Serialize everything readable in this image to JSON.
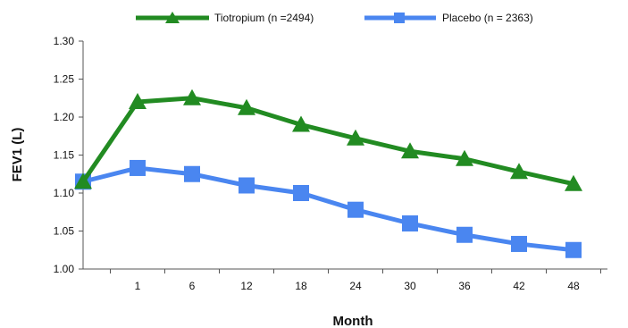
{
  "chart_data": {
    "type": "line",
    "categories": [
      "",
      "1",
      "6",
      "12",
      "18",
      "24",
      "30",
      "36",
      "42",
      "48"
    ],
    "xlabel": "Month",
    "ylabel": "FEV1 (L)",
    "ylim": [
      1.0,
      1.3
    ],
    "yticks": [
      "1.00",
      "1.05",
      "1.10",
      "1.15",
      "1.20",
      "1.25",
      "1.30"
    ],
    "grid": false,
    "legend_position": "top",
    "series": [
      {
        "name": "Tiotropium (n =2494)",
        "color": "#228B22",
        "marker": "triangle",
        "values": [
          1.115,
          1.22,
          1.225,
          1.212,
          1.19,
          1.172,
          1.155,
          1.145,
          1.128,
          1.112
        ]
      },
      {
        "name": "Placebo (n = 2363)",
        "color": "#4A86F0",
        "marker": "square",
        "values": [
          1.115,
          1.133,
          1.125,
          1.11,
          1.1,
          1.078,
          1.06,
          1.045,
          1.033,
          1.025
        ]
      }
    ]
  }
}
